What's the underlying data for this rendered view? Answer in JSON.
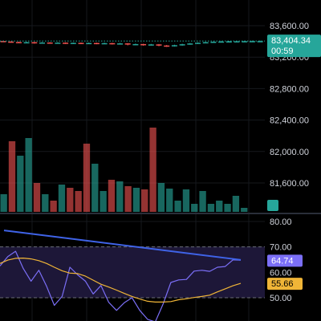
{
  "chart_data": [
    {
      "type": "candlestick",
      "title": "",
      "price_axis": {
        "ticks": [
          "83,600.00",
          "83,200.00",
          "82,800.00",
          "82,400.00",
          "82,000.00",
          "81,600.00"
        ],
        "tick_values": [
          83600,
          83200,
          82800,
          82400,
          82000,
          81600
        ],
        "range": [
          81400,
          83700
        ]
      },
      "current_price": {
        "value": 83404.34,
        "label": "83,404.34",
        "countdown": "00:59",
        "color": "#26a69a"
      },
      "candles": [
        {
          "o": 83405,
          "c": 83398,
          "h": 83410,
          "l": 83392
        },
        {
          "o": 83398,
          "c": 83392,
          "h": 83402,
          "l": 83385
        },
        {
          "o": 83392,
          "c": 83385,
          "h": 83396,
          "l": 83380
        },
        {
          "o": 83385,
          "c": 83390,
          "h": 83396,
          "l": 83378
        },
        {
          "o": 83390,
          "c": 83380,
          "h": 83394,
          "l": 83372
        },
        {
          "o": 83380,
          "c": 83386,
          "h": 83392,
          "l": 83375
        },
        {
          "o": 83386,
          "c": 83378,
          "h": 83390,
          "l": 83370
        },
        {
          "o": 83378,
          "c": 83384,
          "h": 83390,
          "l": 83372
        },
        {
          "o": 83384,
          "c": 83376,
          "h": 83388,
          "l": 83368
        },
        {
          "o": 83376,
          "c": 83382,
          "h": 83386,
          "l": 83370
        },
        {
          "o": 83382,
          "c": 83374,
          "h": 83386,
          "l": 83366
        },
        {
          "o": 83374,
          "c": 83380,
          "h": 83386,
          "l": 83368
        },
        {
          "o": 83380,
          "c": 83372,
          "h": 83384,
          "l": 83364
        },
        {
          "o": 83372,
          "c": 83378,
          "h": 83384,
          "l": 83365
        },
        {
          "o": 83378,
          "c": 83368,
          "h": 83382,
          "l": 83360
        },
        {
          "o": 83368,
          "c": 83375,
          "h": 83380,
          "l": 83360
        },
        {
          "o": 83375,
          "c": 83360,
          "h": 83378,
          "l": 83350
        },
        {
          "o": 83360,
          "c": 83366,
          "h": 83372,
          "l": 83352
        },
        {
          "o": 83366,
          "c": 83355,
          "h": 83370,
          "l": 83346
        },
        {
          "o": 83355,
          "c": 83362,
          "h": 83368,
          "l": 83348
        },
        {
          "o": 83362,
          "c": 83348,
          "h": 83366,
          "l": 83338
        },
        {
          "o": 83348,
          "c": 83340,
          "h": 83354,
          "l": 83330
        },
        {
          "o": 83340,
          "c": 83352,
          "h": 83358,
          "l": 83334
        },
        {
          "o": 83352,
          "c": 83364,
          "h": 83370,
          "l": 83346
        },
        {
          "o": 83364,
          "c": 83374,
          "h": 83380,
          "l": 83358
        },
        {
          "o": 83374,
          "c": 83383,
          "h": 83388,
          "l": 83368
        },
        {
          "o": 83383,
          "c": 83390,
          "h": 83395,
          "l": 83378
        },
        {
          "o": 83390,
          "c": 83396,
          "h": 83400,
          "l": 83385
        },
        {
          "o": 83396,
          "c": 83399,
          "h": 83404,
          "l": 83390
        },
        {
          "o": 83399,
          "c": 83401,
          "h": 83406,
          "l": 83394
        },
        {
          "o": 83401,
          "c": 83402,
          "h": 83408,
          "l": 83396
        },
        {
          "o": 83402,
          "c": 83403,
          "h": 83408,
          "l": 83398
        },
        {
          "o": 83403,
          "c": 83404,
          "h": 83410,
          "l": 83399
        },
        {
          "o": 83404,
          "c": 83404,
          "h": 83410,
          "l": 83400
        }
      ],
      "volume": {
        "values": [
          0.22,
          0.88,
          0.7,
          0.92,
          0.36,
          0.22,
          0.14,
          0.34,
          0.3,
          0.26,
          0.85,
          0.6,
          0.26,
          0.4,
          0.38,
          0.32,
          0.3,
          0.28,
          1.05,
          0.36,
          0.29,
          0.14,
          0.28,
          0.1,
          0.26,
          0.1,
          0.14,
          0.1,
          0.2,
          0.05
        ],
        "directions": [
          "up",
          "down",
          "up",
          "up",
          "down",
          "up",
          "down",
          "up",
          "down",
          "down",
          "down",
          "up",
          "up",
          "down",
          "up",
          "down",
          "up",
          "down",
          "down",
          "up",
          "up",
          "up",
          "up",
          "up",
          "up",
          "up",
          "up",
          "up",
          "up",
          "up"
        ],
        "up_color": "#26a69a",
        "down_color": "#ef5350"
      }
    },
    {
      "type": "line",
      "indicator": "oscillator",
      "axis": {
        "ticks": [
          "80.00",
          "70.00",
          "60.00",
          "50.00"
        ],
        "tick_values": [
          80,
          70,
          60,
          50
        ],
        "range": [
          44,
          82
        ]
      },
      "levels": [
        70,
        50
      ],
      "band_color": "#1d1738",
      "series": [
        {
          "color": "#7b6ff7",
          "last_label": "64.74",
          "values": [
            62.5,
            66.2,
            68.3,
            61.5,
            56.5,
            60.8,
            54.5,
            47.0,
            50.5,
            62.0,
            59.0,
            56.5,
            51.5,
            54.8,
            48.2,
            45.0,
            48.0,
            50.0,
            45.0,
            41.5,
            40.5,
            47.5,
            56.0,
            57.0,
            57.2,
            60.5,
            60.8,
            60.4,
            62.0,
            62.3,
            64.9,
            64.74
          ]
        },
        {
          "color": "#f0b537",
          "last_label": "55.66",
          "values": [
            63.5,
            64.8,
            65.5,
            65.6,
            65.3,
            64.6,
            63.5,
            62.0,
            60.6,
            59.7,
            59.5,
            58.5,
            56.9,
            55.3,
            54.2,
            53.0,
            51.7,
            50.5,
            49.5,
            48.6,
            48.3,
            48.3,
            48.5,
            49.2,
            49.6,
            50.1,
            50.5,
            51.0,
            52.3,
            53.5,
            54.7,
            55.66
          ]
        }
      ],
      "trendline": {
        "color": "#3f63e7",
        "from": 76.5,
        "to": 64.9
      }
    }
  ]
}
